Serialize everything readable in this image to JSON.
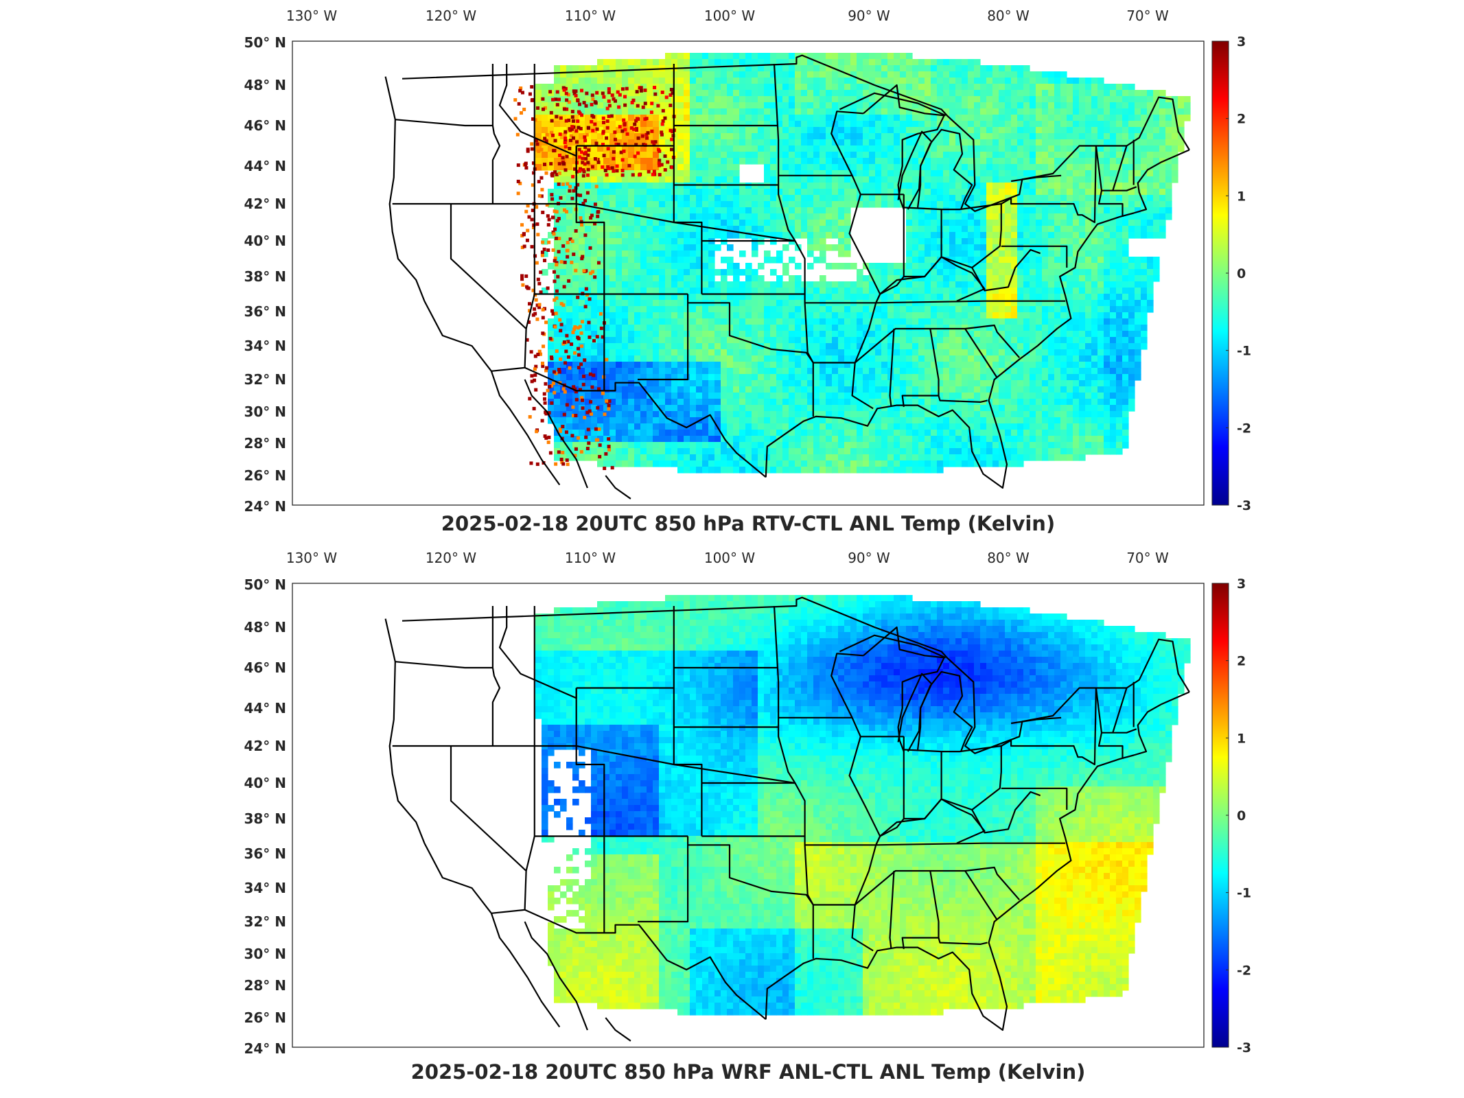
{
  "panels": [
    {
      "title": "2025-02-18 20UTC 850 hPa RTV-CTL ANL Temp (Kelvin)",
      "pattern": "rtv"
    },
    {
      "title": "2025-02-18 20UTC 850 hPa WRF ANL-CTL ANL Temp (Kelvin)",
      "pattern": "wrf"
    }
  ],
  "map": {
    "lon_labels": [
      "130° W",
      "120° W",
      "110° W",
      "100° W",
      "90° W",
      "80° W",
      "70° W"
    ],
    "lon_values": [
      -130,
      -120,
      -110,
      -100,
      -90,
      -80,
      -70
    ],
    "lat_labels": [
      "50° N",
      "48° N",
      "46° N",
      "44° N",
      "42° N",
      "40° N",
      "38° N",
      "36° N",
      "34° N",
      "32° N",
      "30° N",
      "28° N",
      "26° N",
      "24° N"
    ],
    "lat_values": [
      50,
      48,
      46,
      44,
      42,
      40,
      38,
      36,
      34,
      32,
      30,
      28,
      26,
      24
    ]
  },
  "colorbar": {
    "ticks": [
      "3",
      "2",
      "1",
      "0",
      "-1",
      "-2",
      "-3"
    ],
    "range": [
      -3,
      3
    ],
    "colormap": "jet",
    "colors": [
      "#00008f",
      "#0000ff",
      "#0080ff",
      "#00ffff",
      "#80ff80",
      "#ffff00",
      "#ff8000",
      "#ff0000",
      "#800000"
    ]
  }
}
